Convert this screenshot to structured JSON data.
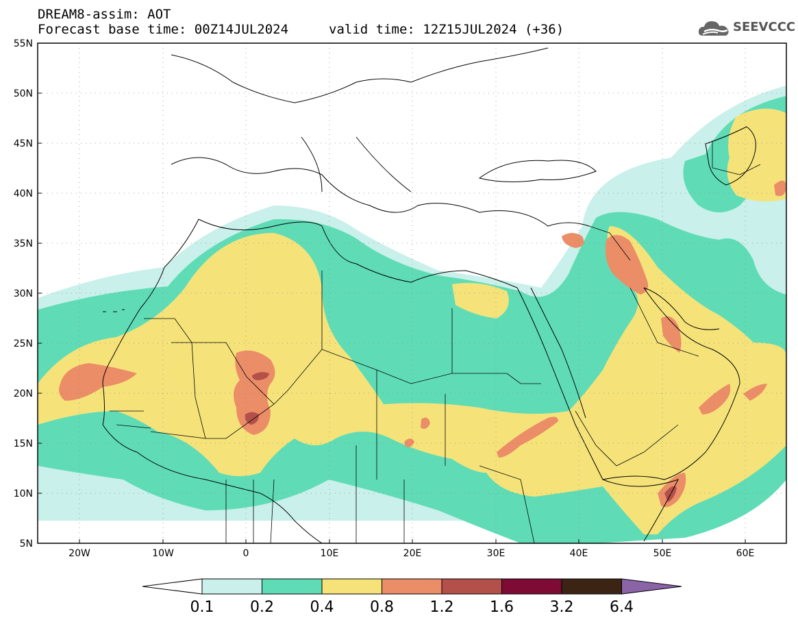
{
  "header": {
    "title": "DREAM8-assim: AOT",
    "base_time": "Forecast base time: 00Z14JUL2024",
    "valid_time": "valid time: 12Z15JUL2024 (+36)"
  },
  "logo": {
    "text": "SEEVCCC",
    "icon": "cloud-icon"
  },
  "map": {
    "lat_labels": [
      "55N",
      "50N",
      "45N",
      "40N",
      "35N",
      "30N",
      "25N",
      "20N",
      "15N",
      "10N",
      "5N"
    ],
    "lon_labels": [
      "20W",
      "10W",
      "0",
      "10E",
      "20E",
      "30E",
      "40E",
      "50E",
      "60E"
    ],
    "lat_range": [
      5,
      55
    ],
    "lon_range": [
      -25,
      65
    ],
    "grid": "dotted"
  },
  "colorbar": {
    "labels": [
      "0.1",
      "0.2",
      "0.4",
      "0.8",
      "1.2",
      "1.6",
      "3.2",
      "6.4"
    ],
    "colors": [
      "#c9f0ea",
      "#5fdcb6",
      "#f5e37a",
      "#eb8d67",
      "#b3504a",
      "#7d0b34",
      "#3b2414"
    ],
    "under_color": "#ffffff",
    "over_color": "#8b64a8"
  }
}
